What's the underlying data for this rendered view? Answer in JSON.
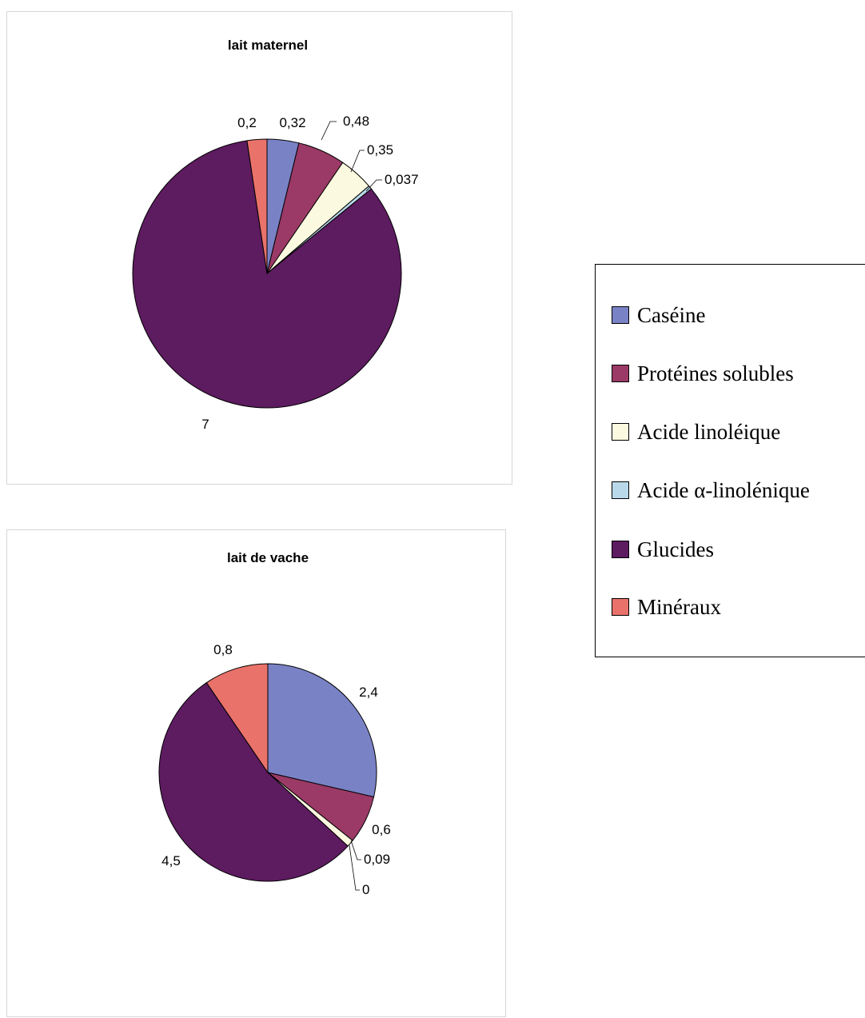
{
  "colors": {
    "Caséine": "#7a82c6",
    "Protéines solubles": "#9b3a66",
    "Acide linoléique": "#fbf9e0",
    "Acide α-linolénique": "#b9d9ea",
    "Glucides": "#5d1b60",
    "Minéraux": "#e9726a"
  },
  "legend": {
    "items": [
      {
        "label": "Caséine",
        "color": "#7a82c6"
      },
      {
        "label": "Protéines solubles",
        "color": "#9b3a66"
      },
      {
        "label": "Acide linoléique",
        "color": "#fbf9e0"
      },
      {
        "label": "Acide α-linolénique",
        "color": "#b9d9ea"
      },
      {
        "label": "Glucides",
        "color": "#5d1b60"
      },
      {
        "label": "Minéraux",
        "color": "#e9726a"
      }
    ]
  },
  "chart_data": [
    {
      "type": "pie",
      "title": "lait maternel",
      "categories": [
        "Caséine",
        "Protéines solubles",
        "Acide linoléique",
        "Acide α-linolénique",
        "Glucides",
        "Minéraux"
      ],
      "values": [
        0.32,
        0.48,
        0.35,
        0.037,
        7,
        0.2
      ],
      "labels": [
        "0,32",
        "0,48",
        "0,35",
        "0,037",
        "7",
        "0,2"
      ],
      "legend_position": "right"
    },
    {
      "type": "pie",
      "title": "lait de vache",
      "categories": [
        "Caséine",
        "Protéines solubles",
        "Acide linoléique",
        "Acide α-linolénique",
        "Glucides",
        "Minéraux"
      ],
      "values": [
        2.4,
        0.6,
        0.09,
        0,
        4.5,
        0.8
      ],
      "labels": [
        "2,4",
        "0,6",
        "0,09",
        "0",
        "4,5",
        "0,8"
      ],
      "legend_position": "right"
    }
  ]
}
